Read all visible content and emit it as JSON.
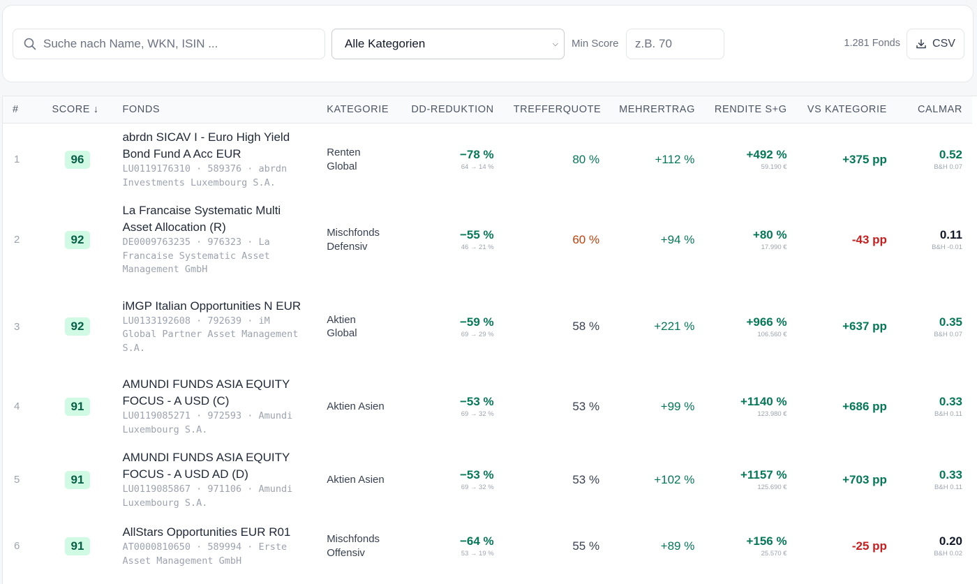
{
  "toolbar": {
    "search_placeholder": "Suche nach Name, WKN, ISIN ...",
    "category_selected": "Alle Kategorien",
    "min_score_label": "Min Score",
    "min_score_placeholder": "z.B. 70",
    "fund_count": "1.281 Fonds",
    "csv_label": "CSV"
  },
  "table": {
    "headers": {
      "num": "#",
      "score": "SCORE",
      "fonds": "FONDS",
      "kategorie": "KATEGORIE",
      "dd": "DD-REDUKTION",
      "treffer": "TREFFERQUOTE",
      "mehr": "MEHRERTRAG",
      "rendite": "RENDITE S+G",
      "vs": "VS KATEGORIE",
      "calmar": "CALMAR"
    },
    "sort_indicator": "↓",
    "rows": [
      {
        "num": "1",
        "score": "96",
        "name": "abrdn SICAV I - Euro High Yield Bond Fund A Acc EUR",
        "meta": "LU0119176310 · 589376 · abrdn Investments Luxembourg S.A.",
        "category": "Renten Global",
        "dd": "−78 %",
        "dd_sub": "64 → 14 %",
        "treffer": "80 %",
        "treffer_color": "green",
        "mehr": "+112 %",
        "rendite": "+492 %",
        "rendite_sub": "59.190 €",
        "vs": "+375 pp",
        "vs_color": "green",
        "calmar": "0.52",
        "calmar_color": "green",
        "calmar_sub": "B&H 0.07"
      },
      {
        "num": "2",
        "score": "92",
        "name": "La Francaise Systematic Multi Asset Allocation (R)",
        "meta": "DE0009763235 · 976323 · La Francaise Systematic Asset Management GmbH",
        "category": "Mischfonds Defensiv",
        "dd": "−55 %",
        "dd_sub": "46 → 21 %",
        "treffer": "60 %",
        "treffer_color": "orange",
        "mehr": "+94 %",
        "rendite": "+80 %",
        "rendite_sub": "17.990 €",
        "vs": "-43 pp",
        "vs_color": "red",
        "calmar": "0.11",
        "calmar_color": "dark",
        "calmar_sub": "B&H -0.01"
      },
      {
        "num": "3",
        "score": "92",
        "name": "iMGP Italian Opportunities N EUR",
        "meta": "LU0133192608 · 792639 · iM Global Partner Asset Management S.A.",
        "category": "Aktien Global",
        "dd": "−59 %",
        "dd_sub": "69 → 29 %",
        "treffer": "58 %",
        "treffer_color": "gray",
        "mehr": "+221 %",
        "rendite": "+966 %",
        "rendite_sub": "106.560 €",
        "vs": "+637 pp",
        "vs_color": "green",
        "calmar": "0.35",
        "calmar_color": "green",
        "calmar_sub": "B&H 0.07"
      },
      {
        "num": "4",
        "score": "91",
        "name": "AMUNDI FUNDS ASIA EQUITY FOCUS - A USD (C)",
        "meta": "LU0119085271 · 972593 · Amundi Luxembourg S.A.",
        "category": "Aktien Asien",
        "dd": "−53 %",
        "dd_sub": "69 → 32 %",
        "treffer": "53 %",
        "treffer_color": "gray",
        "mehr": "+99 %",
        "rendite": "+1140 %",
        "rendite_sub": "123.980 €",
        "vs": "+686 pp",
        "vs_color": "green",
        "calmar": "0.33",
        "calmar_color": "green",
        "calmar_sub": "B&H 0.11"
      },
      {
        "num": "5",
        "score": "91",
        "name": "AMUNDI FUNDS ASIA EQUITY FOCUS - A USD AD (D)",
        "meta": "LU0119085867 · 971106 · Amundi Luxembourg S.A.",
        "category": "Aktien Asien",
        "dd": "−53 %",
        "dd_sub": "69 → 32 %",
        "treffer": "53 %",
        "treffer_color": "gray",
        "mehr": "+102 %",
        "rendite": "+1157 %",
        "rendite_sub": "125.690 €",
        "vs": "+703 pp",
        "vs_color": "green",
        "calmar": "0.33",
        "calmar_color": "green",
        "calmar_sub": "B&H 0.11"
      },
      {
        "num": "6",
        "score": "91",
        "name": "AllStars Opportunities EUR R01",
        "meta": "AT0000810650 · 589994 · Erste Asset Management GmbH",
        "category": "Mischfonds Offensiv",
        "dd": "−64 %",
        "dd_sub": "53 → 19 %",
        "treffer": "55 %",
        "treffer_color": "gray",
        "mehr": "+89 %",
        "rendite": "+156 %",
        "rendite_sub": "25.570 €",
        "vs": "-25 pp",
        "vs_color": "red",
        "calmar": "0.20",
        "calmar_color": "dark",
        "calmar_sub": "B&H 0.02"
      }
    ]
  }
}
